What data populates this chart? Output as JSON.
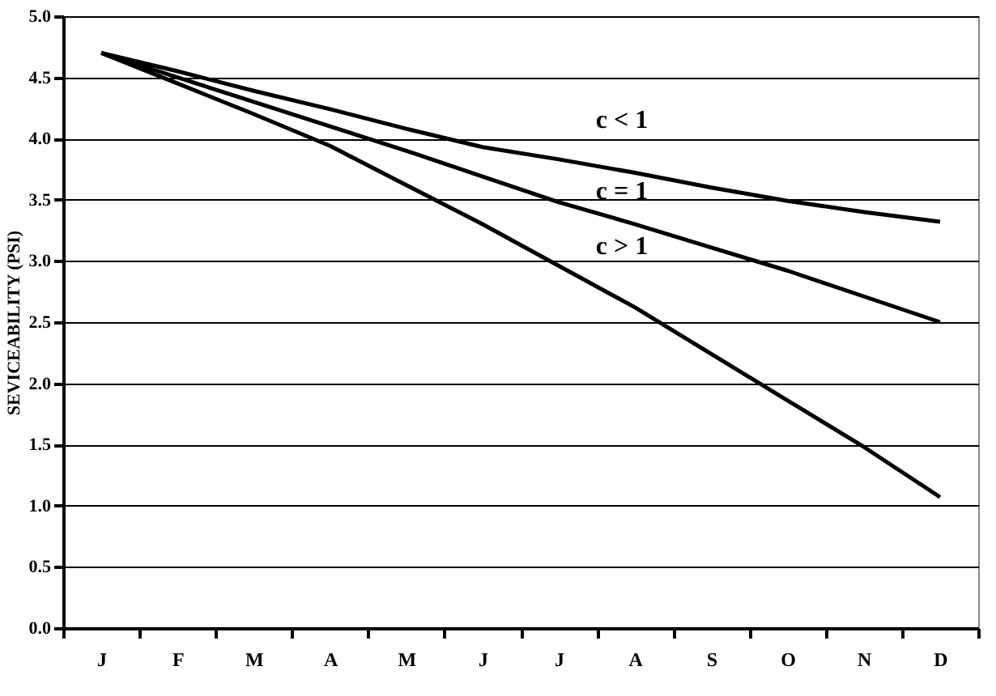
{
  "chart_data": {
    "type": "line",
    "ylabel": "SEVICEABILITY (PSI)",
    "categories": [
      "J",
      "F",
      "M",
      "A",
      "M",
      "J",
      "J",
      "A",
      "S",
      "O",
      "N",
      "D"
    ],
    "series": [
      {
        "color": "#000000",
        "values": [
          4.7,
          4.55,
          4.39,
          4.24,
          4.08,
          3.93,
          3.83,
          3.72,
          3.6,
          3.49,
          3.4,
          3.32
        ]
      },
      {
        "color": "#000000",
        "values": [
          4.7,
          4.5,
          4.3,
          4.1,
          3.9,
          3.69,
          3.48,
          3.3,
          3.11,
          2.92,
          2.71,
          2.5
        ]
      },
      {
        "color": "#000000",
        "values": [
          4.7,
          4.45,
          4.2,
          3.94,
          3.62,
          3.3,
          2.96,
          2.62,
          2.24,
          1.86,
          1.48,
          1.07
        ]
      }
    ],
    "annotations": [
      "c < 1",
      "c = 1",
      "c > 1"
    ],
    "ylim": [
      0,
      5
    ],
    "yticks": [
      {
        "value": 0,
        "label": "0.0"
      },
      {
        "value": 0.5,
        "label": "0.5"
      },
      {
        "value": 1,
        "label": "1.0"
      },
      {
        "value": 1.5,
        "label": "1.5"
      },
      {
        "value": 2,
        "label": "2.0"
      },
      {
        "value": 2.5,
        "label": "2.5"
      },
      {
        "value": 3,
        "label": "3.0"
      },
      {
        "value": 3.5,
        "label": "3.5"
      },
      {
        "value": 4,
        "label": "4.0"
      },
      {
        "value": 4.5,
        "label": "4.5"
      },
      {
        "value": 5,
        "label": "5.0"
      }
    ],
    "grid": "y",
    "marker": "none",
    "line_style": "solid"
  }
}
